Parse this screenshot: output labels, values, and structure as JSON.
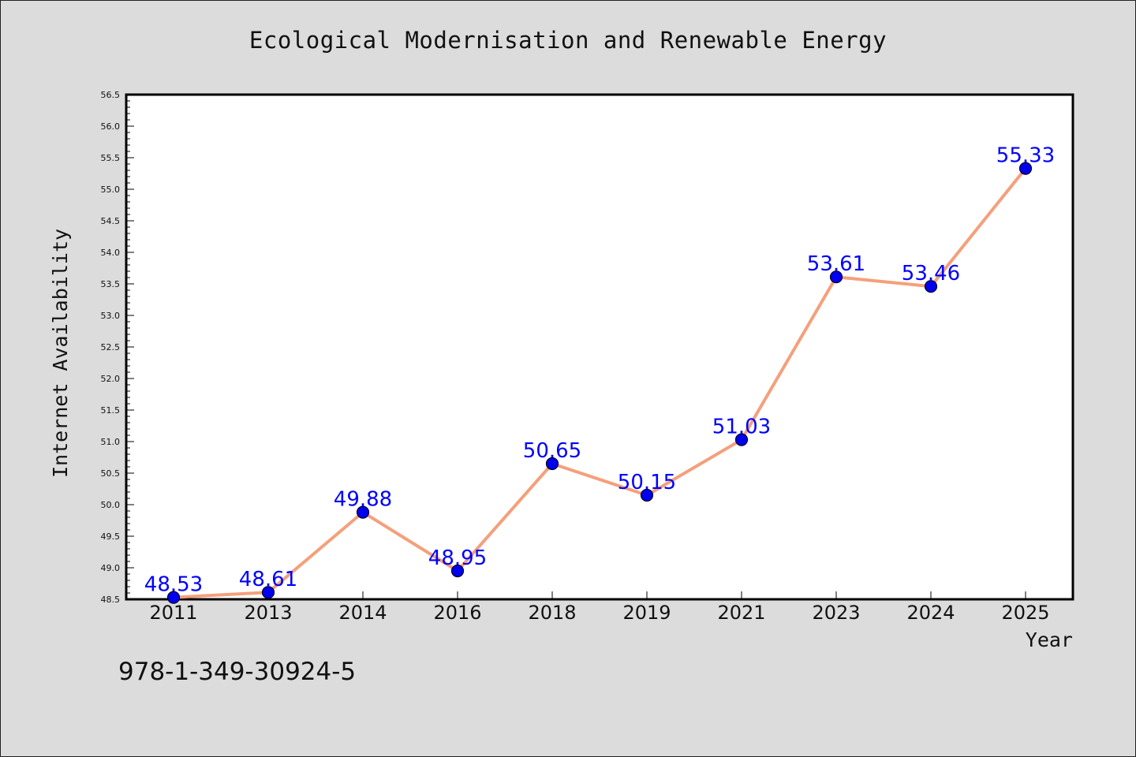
{
  "chart_data": {
    "type": "line",
    "title": "Ecological Modernisation and Renewable Energy",
    "xlabel": "Year",
    "ylabel": "Internet Availability",
    "categories": [
      "2011",
      "2013",
      "2014",
      "2016",
      "2018",
      "2019",
      "2021",
      "2023",
      "2024",
      "2025"
    ],
    "values": [
      48.53,
      48.61,
      49.88,
      48.95,
      50.65,
      50.15,
      51.03,
      53.61,
      53.46,
      55.33
    ],
    "data_labels": [
      "48.53",
      "48.61",
      "49.88",
      "48.95",
      "50.65",
      "50.15",
      "51.03",
      "53.61",
      "53.46",
      "55.33"
    ],
    "ylim": [
      48.5,
      56.5
    ],
    "yticks": [
      "48.5",
      "49.0",
      "49.5",
      "50.0",
      "50.5",
      "51.0",
      "51.5",
      "52.0",
      "52.5",
      "53.0",
      "53.5",
      "54.0",
      "54.5",
      "55.0",
      "55.5",
      "56.0",
      "56.5"
    ],
    "grid": false,
    "line_color": "#f4a07c",
    "marker_color": "#0000ee",
    "label_color": "#0000ff"
  },
  "footer_text": "978-1-349-30924-5"
}
